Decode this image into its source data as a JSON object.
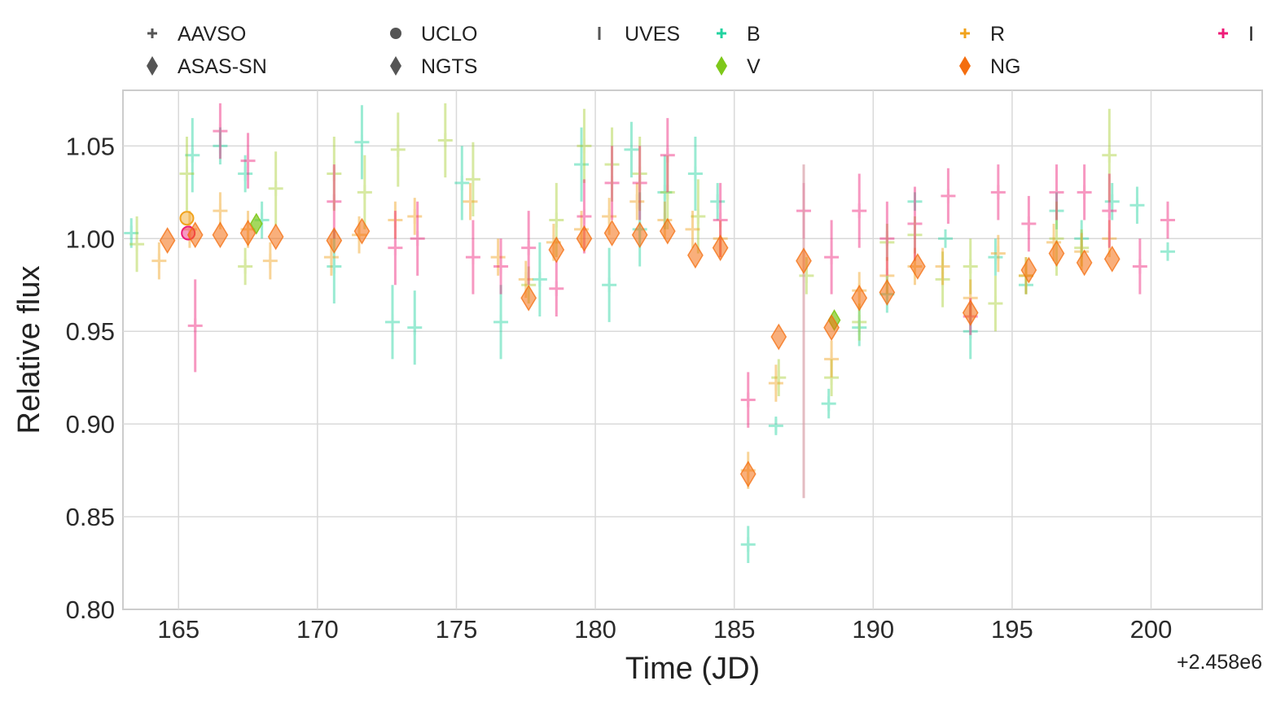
{
  "chart_data": {
    "type": "scatter",
    "title": "",
    "xlabel": "Time (JD)",
    "ylabel": "Relative flux",
    "x_offset_label": "+2.458e6",
    "xlim": [
      163,
      204
    ],
    "ylim": [
      0.8,
      1.08
    ],
    "x_ticks": [
      165,
      170,
      175,
      180,
      185,
      190,
      195,
      200
    ],
    "y_ticks": [
      0.8,
      0.85,
      0.9,
      0.95,
      1.0,
      1.05
    ],
    "x_tick_labels": [
      "165",
      "170",
      "175",
      "180",
      "185",
      "190",
      "195",
      "200"
    ],
    "y_tick_labels": [
      "0.80",
      "0.85",
      "0.90",
      "0.95",
      "1.00",
      "1.05"
    ],
    "grid": true,
    "legend": [
      {
        "label": "AAVSO",
        "marker": "plus",
        "color": "#555555"
      },
      {
        "label": "ASAS-SN",
        "marker": "diamond",
        "color": "#555555"
      },
      {
        "label": "UCLO",
        "marker": "circle",
        "color": "#555555"
      },
      {
        "label": "NGTS",
        "marker": "diamond",
        "color": "#555555"
      },
      {
        "label": "UVES",
        "marker": "vline",
        "color": "#555555"
      },
      {
        "label": "B",
        "marker": "plus",
        "color": "#22d3a0"
      },
      {
        "label": "V",
        "marker": "diamond",
        "color": "#7ec81a"
      },
      {
        "label": "R",
        "marker": "plus",
        "color": "#f0a21c"
      },
      {
        "label": "NG",
        "marker": "diamond",
        "color": "#f46d0e"
      },
      {
        "label": "I",
        "marker": "plus",
        "color": "#ee1c78"
      }
    ],
    "colors": {
      "B": "#22d3a0",
      "V": "#a8cf33",
      "R": "#f0a21c",
      "I": "#ee1c78",
      "NG": "#f46d0e",
      "ASAS_V": "#7ec81a"
    },
    "series": [
      {
        "name": "AAVSO B",
        "marker": "plus",
        "color": "#22d3a0",
        "x": [
          163.3,
          165.5,
          166.5,
          167.4,
          168.0,
          170.6,
          171.6,
          172.7,
          173.5,
          175.2,
          176.6,
          178.0,
          179.5,
          180.5,
          181.3,
          181.6,
          182.5,
          183.6,
          184.4,
          185.5,
          186.5,
          188.4,
          189.5,
          190.5,
          191.5,
          192.6,
          193.5,
          194.4,
          195.5,
          196.6,
          197.5,
          198.6,
          199.5,
          200.6
        ],
        "y": [
          1.003,
          1.045,
          1.05,
          1.035,
          1.01,
          0.985,
          1.052,
          0.955,
          0.952,
          1.03,
          0.955,
          0.978,
          1.04,
          0.975,
          1.048,
          1.005,
          1.025,
          1.035,
          1.02,
          0.835,
          0.899,
          0.911,
          0.952,
          0.97,
          1.02,
          1.0,
          0.95,
          0.99,
          0.975,
          1.015,
          1.0,
          1.02,
          1.018,
          0.993
        ],
        "err": [
          0.008,
          0.02,
          0.01,
          0.01,
          0.01,
          0.02,
          0.02,
          0.02,
          0.02,
          0.02,
          0.02,
          0.02,
          0.02,
          0.02,
          0.015,
          0.02,
          0.02,
          0.02,
          0.01,
          0.01,
          0.005,
          0.008,
          0.01,
          0.01,
          0.005,
          0.005,
          0.015,
          0.01,
          0.005,
          0.01,
          0.01,
          0.01,
          0.01,
          0.005
        ]
      },
      {
        "name": "AAVSO V",
        "marker": "plus",
        "color": "#a8cf33",
        "x": [
          163.5,
          165.3,
          167.4,
          168.5,
          170.6,
          171.7,
          172.9,
          174.6,
          175.6,
          177.6,
          178.6,
          179.6,
          180.6,
          181.6,
          182.6,
          183.7,
          186.6,
          187.6,
          188.5,
          189.5,
          190.5,
          191.5,
          192.5,
          193.5,
          194.4,
          195.5,
          196.6,
          197.5,
          198.5
        ],
        "y": [
          0.997,
          1.035,
          0.985,
          1.027,
          1.035,
          1.025,
          1.048,
          1.053,
          1.032,
          0.975,
          1.01,
          1.05,
          1.04,
          1.035,
          1.025,
          1.012,
          0.925,
          0.98,
          0.925,
          0.955,
          0.998,
          1.002,
          0.978,
          0.985,
          0.965,
          0.98,
          1.0,
          0.995,
          1.045
        ],
        "err": [
          0.015,
          0.02,
          0.01,
          0.02,
          0.02,
          0.02,
          0.02,
          0.02,
          0.02,
          0.01,
          0.02,
          0.02,
          0.02,
          0.02,
          0.02,
          0.02,
          0.01,
          0.01,
          0.01,
          0.01,
          0.01,
          0.01,
          0.015,
          0.015,
          0.015,
          0.01,
          0.02,
          0.01,
          0.025
        ]
      },
      {
        "name": "AAVSO R",
        "marker": "plus",
        "color": "#f0a21c",
        "x": [
          164.3,
          165.4,
          166.5,
          167.5,
          168.3,
          170.5,
          171.5,
          172.8,
          173.5,
          175.5,
          176.5,
          177.5,
          178.5,
          179.5,
          180.5,
          181.5,
          182.5,
          183.5,
          184.5,
          185.5,
          186.5,
          188.5,
          189.5,
          190.5,
          191.5,
          192.5,
          193.5,
          194.5,
          195.5,
          196.5,
          197.5,
          198.5
        ],
        "y": [
          0.988,
          1.005,
          1.015,
          1.005,
          0.988,
          0.99,
          1.002,
          1.01,
          1.012,
          1.02,
          0.99,
          0.978,
          0.998,
          1.005,
          1.012,
          1.02,
          1.01,
          1.005,
          1.0,
          0.875,
          0.922,
          0.935,
          0.972,
          0.98,
          0.985,
          0.985,
          0.968,
          0.992,
          0.98,
          0.998,
          0.993,
          1.0
        ],
        "err": [
          0.01,
          0.01,
          0.01,
          0.01,
          0.01,
          0.01,
          0.01,
          0.01,
          0.01,
          0.01,
          0.01,
          0.01,
          0.01,
          0.01,
          0.01,
          0.01,
          0.01,
          0.01,
          0.01,
          0.01,
          0.01,
          0.01,
          0.01,
          0.01,
          0.01,
          0.01,
          0.01,
          0.01,
          0.01,
          0.01,
          0.01,
          0.01
        ]
      },
      {
        "name": "AAVSO I",
        "marker": "plus",
        "color": "#ee1c78",
        "x": [
          165.6,
          166.5,
          167.5,
          170.6,
          172.8,
          173.6,
          175.6,
          176.6,
          177.6,
          178.6,
          179.6,
          180.6,
          181.6,
          182.6,
          184.5,
          185.5,
          187.5,
          188.5,
          189.5,
          190.5,
          191.5,
          192.7,
          193.5,
          194.5,
          195.6,
          196.6,
          197.6,
          198.5,
          199.6,
          200.6
        ],
        "y": [
          0.953,
          1.058,
          1.042,
          1.02,
          0.995,
          1.0,
          0.99,
          0.985,
          0.995,
          0.973,
          1.012,
          1.03,
          1.03,
          1.045,
          1.01,
          0.913,
          1.015,
          0.99,
          1.015,
          1.0,
          1.008,
          1.023,
          0.958,
          1.025,
          1.008,
          1.025,
          1.025,
          1.015,
          0.985,
          1.01
        ],
        "err": [
          0.025,
          0.015,
          0.015,
          0.02,
          0.02,
          0.02,
          0.02,
          0.015,
          0.02,
          0.015,
          0.02,
          0.02,
          0.02,
          0.02,
          0.02,
          0.015,
          0.015,
          0.02,
          0.02,
          0.02,
          0.02,
          0.015,
          0.01,
          0.015,
          0.015,
          0.015,
          0.015,
          0.02,
          0.015,
          0.01
        ]
      },
      {
        "name": "UCLO",
        "marker": "circle",
        "x": [
          165.3,
          165.35
        ],
        "y": [
          1.011,
          1.003
        ],
        "colors": [
          "#f0a21c",
          "#ee1c78"
        ]
      },
      {
        "name": "ASAS-SN V",
        "marker": "diamond",
        "color": "#7ec81a",
        "x": [
          167.8,
          188.6
        ],
        "y": [
          1.008,
          0.956
        ]
      },
      {
        "name": "UVES",
        "marker": "vline",
        "color": "#d9a0a8",
        "x": [
          187.5
        ],
        "y": [
          0.95
        ],
        "err": [
          0.09
        ]
      },
      {
        "name": "NGTS NG",
        "marker": "diamond",
        "color": "#f46d0e",
        "x": [
          164.6,
          165.6,
          166.5,
          167.5,
          168.5,
          170.6,
          171.6,
          177.6,
          178.6,
          179.6,
          180.6,
          181.6,
          182.6,
          183.6,
          184.5,
          185.5,
          186.6,
          187.5,
          188.5,
          189.5,
          190.5,
          191.6,
          193.5,
          195.6,
          196.6,
          197.6,
          198.6
        ],
        "y": [
          0.999,
          1.002,
          1.002,
          1.003,
          1.001,
          0.999,
          1.004,
          0.968,
          0.994,
          1.0,
          1.003,
          1.002,
          1.004,
          0.991,
          0.995,
          0.873,
          0.947,
          0.988,
          0.952,
          0.968,
          0.971,
          0.985,
          0.96,
          0.983,
          0.992,
          0.987,
          0.989
        ]
      }
    ]
  }
}
